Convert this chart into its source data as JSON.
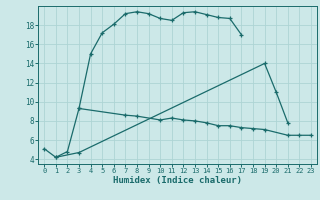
{
  "bg_color": "#cce8e8",
  "grid_color": "#aed4d4",
  "line_color": "#1a6b6b",
  "xlabel": "Humidex (Indice chaleur)",
  "ylim": [
    3.5,
    20.0
  ],
  "xlim": [
    -0.5,
    23.5
  ],
  "yticks": [
    4,
    6,
    8,
    10,
    12,
    14,
    16,
    18
  ],
  "xticks": [
    0,
    1,
    2,
    3,
    4,
    5,
    6,
    7,
    8,
    9,
    10,
    11,
    12,
    13,
    14,
    15,
    16,
    17,
    18,
    19,
    20,
    21,
    22,
    23
  ],
  "curve1_x": [
    0,
    1,
    2,
    3,
    4,
    5,
    6,
    7,
    8,
    9,
    10,
    11,
    12,
    13,
    14,
    15,
    16,
    17
  ],
  "curve1_y": [
    5.1,
    4.2,
    4.8,
    9.3,
    15.0,
    17.2,
    18.1,
    19.2,
    19.4,
    19.2,
    18.7,
    18.5,
    19.3,
    19.4,
    19.1,
    18.8,
    18.7,
    17.0
  ],
  "curve2_x": [
    3,
    7,
    8,
    10,
    11,
    12,
    13,
    14,
    15,
    16,
    17,
    18,
    19,
    21,
    22,
    23
  ],
  "curve2_y": [
    9.3,
    8.6,
    8.5,
    8.1,
    8.3,
    8.1,
    8.0,
    7.8,
    7.5,
    7.5,
    7.3,
    7.2,
    7.1,
    6.5,
    6.5,
    6.5
  ],
  "curve3_x": [
    1,
    3,
    19,
    20,
    21
  ],
  "curve3_y": [
    4.2,
    4.7,
    14.0,
    11.0,
    7.8
  ]
}
